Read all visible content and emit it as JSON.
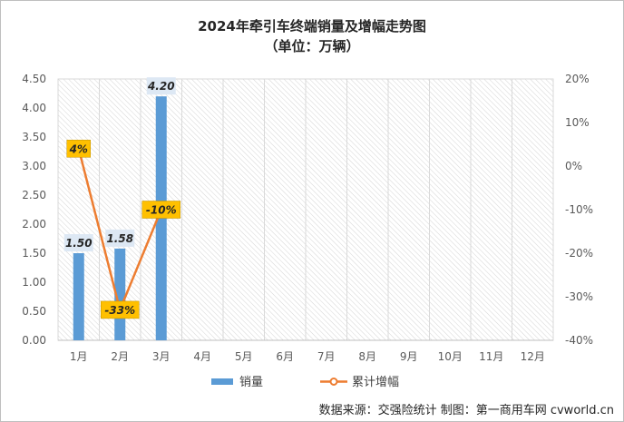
{
  "chart_data": {
    "type": "bar",
    "title": "2024年牵引车终端销量及增幅走势图",
    "subtitle": "（单位：万辆）",
    "categories": [
      "1月",
      "2月",
      "3月",
      "4月",
      "5月",
      "6月",
      "7月",
      "8月",
      "9月",
      "10月",
      "11月",
      "12月"
    ],
    "series": [
      {
        "name": "销量",
        "type": "bar",
        "axis": "left",
        "color": "#5b9bd5",
        "values": [
          1.5,
          1.58,
          4.2,
          null,
          null,
          null,
          null,
          null,
          null,
          null,
          null,
          null
        ],
        "labels": [
          "1.50",
          "1.58",
          "4.20"
        ]
      },
      {
        "name": "累计增幅",
        "type": "line",
        "axis": "right",
        "color": "#ed7d31",
        "values": [
          4,
          -33,
          -10,
          null,
          null,
          null,
          null,
          null,
          null,
          null,
          null,
          null
        ],
        "labels": [
          "4%",
          "-33%",
          "-10%"
        ]
      }
    ],
    "y_left": {
      "min": 0,
      "max": 4.5,
      "ticks": [
        "0.00",
        "0.50",
        "1.00",
        "1.50",
        "2.00",
        "2.50",
        "3.00",
        "3.50",
        "4.00",
        "4.50"
      ]
    },
    "y_right": {
      "min": -40,
      "max": 20,
      "unit": "%",
      "ticks": [
        "-40%",
        "-30%",
        "-20%",
        "-10%",
        "0%",
        "10%",
        "20%"
      ]
    },
    "grid": true,
    "legend_position": "bottom",
    "line_label_bg": "#ffc000",
    "bar_label_bg": "#dde8f4"
  },
  "source": "数据来源：交强险统计   制图：第一商用车网 cvworld.cn"
}
